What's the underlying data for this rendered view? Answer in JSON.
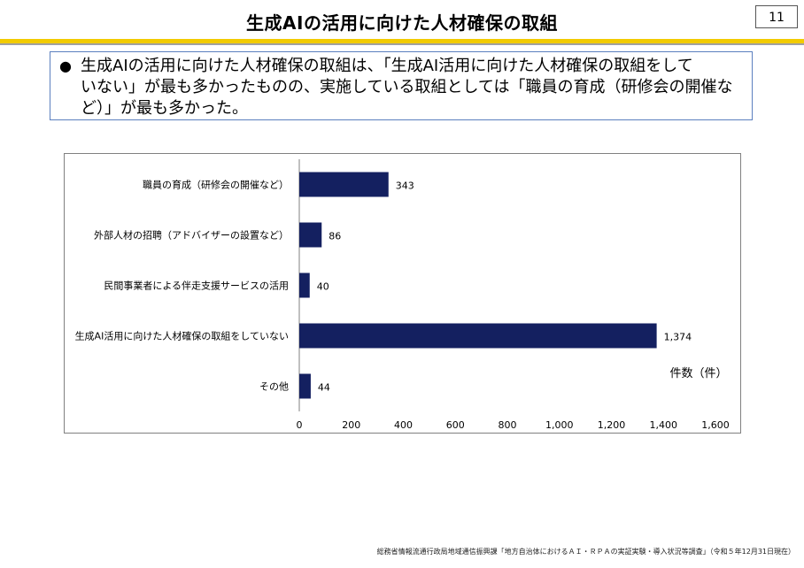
{
  "page": {
    "title": "生成AIの活用に向けた人材確保の取組",
    "page_number": "11"
  },
  "summary": {
    "bullet": "●",
    "line1": "生成AIの活用に向けた人材確保の取組は、「生成AI活用に向けた人材確保の取組をして",
    "line2": "いない」が最も多かったものの、実施している取組としては「職員の育成（研修会の開催な",
    "line3": "ど）」が最も多かった。"
  },
  "chart_data": {
    "type": "bar",
    "orientation": "horizontal",
    "categories": [
      "職員の育成（研修会の開催など）",
      "外部人材の招聘（アドバイザーの設置など）",
      "民間事業者による伴走支援サービスの活用",
      "生成AI活用に向けた人材確保の取組をしていない",
      "その他"
    ],
    "values": [
      343,
      86,
      40,
      1374,
      44
    ],
    "value_labels": [
      "343",
      "86",
      "40",
      "1,374",
      "44"
    ],
    "xlim": [
      0,
      1600
    ],
    "xticks": [
      "0",
      "200",
      "400",
      "600",
      "800",
      "1,000",
      "1,200",
      "1,400",
      "1,600"
    ],
    "unit_label": "件数（件）",
    "bar_color": "#142060",
    "grid": false
  },
  "footer": {
    "source": "総務省情報流通行政局地域通信振興課「地方自治体におけるＡＩ・ＲＰＡの実証実験・導入状況等調査」（令和５年12月31日現在）"
  }
}
